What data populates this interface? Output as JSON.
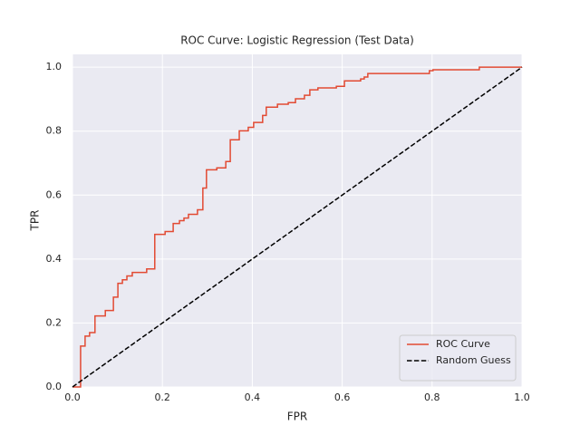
{
  "chart_data": {
    "type": "line",
    "title": "ROC Curve: Logistic Regression (Test Data)",
    "xlabel": "FPR",
    "ylabel": "TPR",
    "xlim": [
      0,
      1
    ],
    "ylim": [
      0,
      1.04
    ],
    "xticks": [
      {
        "value": 0,
        "label": "0.0"
      },
      0.2,
      0.4,
      0.6,
      0.8,
      {
        "value": 1,
        "label": "1.0"
      }
    ],
    "yticks": [
      {
        "value": 0,
        "label": "0.0"
      },
      0.2,
      0.4,
      0.6,
      0.8,
      {
        "value": 1,
        "label": "1.0"
      }
    ],
    "grid": true,
    "legend": "lower right",
    "series": [
      {
        "name": "ROC Curve",
        "color": "#e24a33",
        "dash": false,
        "x": [
          0,
          0.018,
          0.018,
          0.028,
          0.028,
          0.038,
          0.038,
          0.05,
          0.05,
          0.073,
          0.073,
          0.091,
          0.091,
          0.101,
          0.101,
          0.111,
          0.111,
          0.121,
          0.121,
          0.133,
          0.133,
          0.165,
          0.165,
          0.183,
          0.183,
          0.206,
          0.206,
          0.224,
          0.224,
          0.238,
          0.238,
          0.248,
          0.248,
          0.258,
          0.258,
          0.278,
          0.278,
          0.29,
          0.29,
          0.298,
          0.298,
          0.321,
          0.321,
          0.341,
          0.341,
          0.351,
          0.351,
          0.371,
          0.371,
          0.391,
          0.391,
          0.403,
          0.403,
          0.423,
          0.423,
          0.431,
          0.431,
          0.456,
          0.456,
          0.48,
          0.48,
          0.496,
          0.496,
          0.516,
          0.516,
          0.528,
          0.528,
          0.546,
          0.546,
          0.587,
          0.587,
          0.605,
          0.605,
          0.641,
          0.641,
          0.649,
          0.649,
          0.657,
          0.657,
          0.794,
          0.794,
          0.802,
          0.802,
          0.905,
          0.905,
          1
        ],
        "values": [
          0,
          0,
          0.128,
          0.128,
          0.159,
          0.159,
          0.17,
          0.17,
          0.222,
          0.222,
          0.239,
          0.239,
          0.281,
          0.281,
          0.324,
          0.324,
          0.335,
          0.335,
          0.347,
          0.347,
          0.358,
          0.358,
          0.369,
          0.369,
          0.477,
          0.477,
          0.486,
          0.486,
          0.511,
          0.511,
          0.52,
          0.52,
          0.528,
          0.528,
          0.54,
          0.54,
          0.554,
          0.554,
          0.622,
          0.622,
          0.679,
          0.679,
          0.685,
          0.685,
          0.705,
          0.705,
          0.773,
          0.773,
          0.801,
          0.801,
          0.812,
          0.812,
          0.827,
          0.827,
          0.849,
          0.849,
          0.875,
          0.875,
          0.884,
          0.884,
          0.889,
          0.889,
          0.901,
          0.901,
          0.912,
          0.912,
          0.929,
          0.929,
          0.935,
          0.935,
          0.94,
          0.94,
          0.957,
          0.957,
          0.963,
          0.963,
          0.969,
          0.969,
          0.98,
          0.98,
          0.989,
          0.989,
          0.992,
          0.992,
          1,
          1
        ]
      },
      {
        "name": "Random Guess",
        "color": "#000000",
        "dash": true,
        "x": [
          0,
          1
        ],
        "values": [
          0,
          1
        ]
      }
    ]
  }
}
